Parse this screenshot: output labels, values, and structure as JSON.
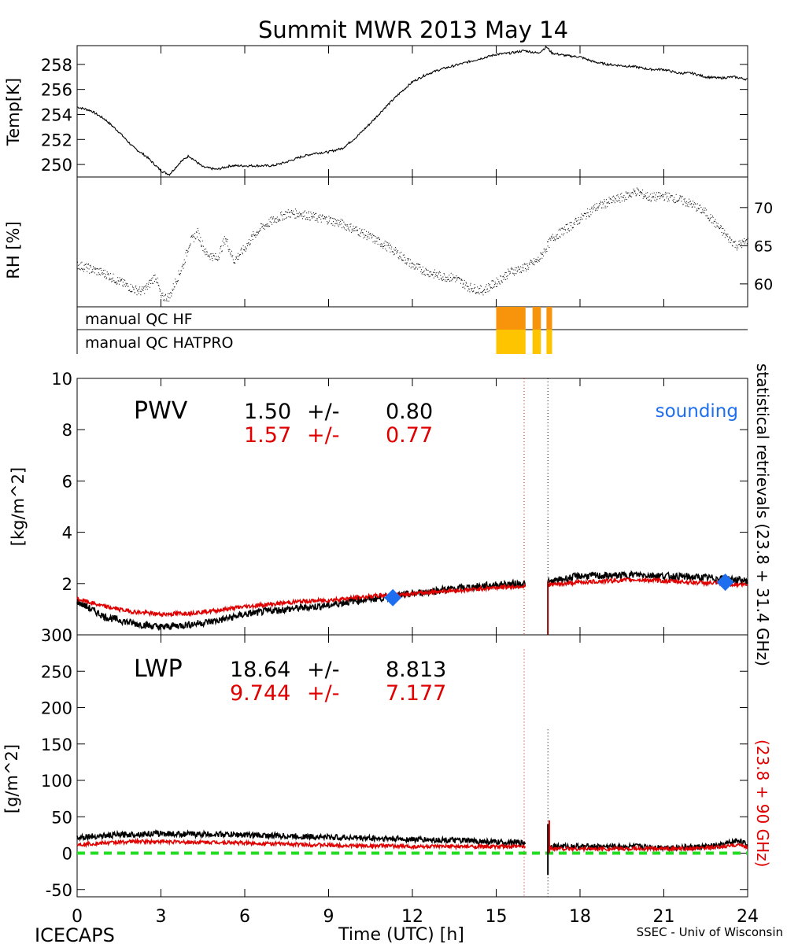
{
  "figure": {
    "title": "Summit MWR 2013 May 14",
    "footer_left": "ICECAPS",
    "footer_right": "SSEC - Univ of Wisconsin",
    "xlabel": "Time (UTC) [h]",
    "xticks": [
      "0",
      "3",
      "6",
      "9",
      "12",
      "15",
      "18",
      "21",
      "24"
    ],
    "colors": {
      "black": "#000000",
      "red": "#e00000",
      "blue": "#1e6ff0",
      "green": "#22dd22",
      "orange": "#f7940b",
      "yellow": "#ffc400"
    }
  },
  "chart_data": [
    {
      "id": "temp",
      "type": "line",
      "ylabel": "Temp[K]",
      "ylim": [
        249,
        259.5
      ],
      "xlim": [
        0,
        24
      ],
      "yticks": [
        "250",
        "252",
        "254",
        "256",
        "258"
      ],
      "series": [
        {
          "name": "temperature",
          "x": [
            0,
            0.5,
            1,
            1.5,
            2,
            2.5,
            3,
            3.3,
            3.7,
            4,
            4.5,
            5,
            5.5,
            6,
            6.5,
            7,
            7.5,
            8,
            8.5,
            9,
            9.5,
            10,
            10.5,
            11,
            11.5,
            12,
            12.5,
            13,
            13.5,
            14,
            14.5,
            15,
            15.5,
            16,
            16.5,
            16.8,
            17,
            17.5,
            18,
            18.5,
            19,
            19.5,
            20,
            20.5,
            21,
            21.5,
            22,
            22.5,
            23,
            23.5,
            24
          ],
          "values": [
            254.6,
            254.3,
            253.6,
            252.6,
            251.4,
            250.6,
            249.5,
            249.2,
            250.2,
            250.7,
            249.8,
            249.6,
            249.9,
            249.9,
            249.9,
            249.9,
            250.2,
            250.6,
            250.9,
            251.0,
            251.3,
            252.2,
            253.3,
            254.5,
            255.6,
            256.6,
            257.2,
            257.6,
            257.9,
            258.2,
            258.5,
            258.8,
            258.9,
            259.1,
            258.9,
            259.4,
            258.9,
            258.7,
            258.6,
            258.2,
            258.0,
            257.9,
            257.8,
            257.6,
            257.6,
            257.3,
            257.3,
            257.0,
            256.9,
            257.0,
            256.8
          ]
        }
      ]
    },
    {
      "id": "rh",
      "type": "scatter",
      "ylabel": "RH [%]",
      "ylim": [
        57,
        74
      ],
      "xlim": [
        0,
        24
      ],
      "yticks": [
        "60",
        "65",
        "70"
      ],
      "series": [
        {
          "name": "relative humidity",
          "x": [
            0,
            0.5,
            1,
            1.5,
            2,
            2.3,
            2.5,
            2.8,
            3,
            3.3,
            3.5,
            3.8,
            4,
            4.3,
            4.6,
            5,
            5.3,
            5.6,
            6,
            6.3,
            6.6,
            7,
            7.5,
            8,
            8.5,
            9,
            9.5,
            10,
            10.5,
            11,
            11.5,
            12,
            12.5,
            13,
            13.5,
            14,
            14.5,
            15,
            15.5,
            16,
            16.5,
            17,
            17.5,
            18,
            18.5,
            19,
            19.5,
            20,
            20.5,
            21,
            21.5,
            22,
            22.5,
            23,
            23.3,
            23.6,
            24
          ],
          "values": [
            62.5,
            61.9,
            61.3,
            60.3,
            59.3,
            59.0,
            59.6,
            61.1,
            58.2,
            58.3,
            60.2,
            62.6,
            65.3,
            66.7,
            64.0,
            63.3,
            66.0,
            63.0,
            64.7,
            66.3,
            67.4,
            68.3,
            69.2,
            69.2,
            68.7,
            68.4,
            67.8,
            67.0,
            66.1,
            65.1,
            63.9,
            62.4,
            61.6,
            61.0,
            60.8,
            59.6,
            59.1,
            60.2,
            61.6,
            62.1,
            63.1,
            66.0,
            67.2,
            68.5,
            69.9,
            70.7,
            71.3,
            72.1,
            71.3,
            71.5,
            71.1,
            70.4,
            69.3,
            67.2,
            66.0,
            65.0,
            65.6
          ]
        }
      ]
    },
    {
      "id": "qc",
      "type": "bar",
      "rows": [
        "manual QC HF",
        "manual QC HATPRO"
      ],
      "segments": [
        {
          "start": 15.0,
          "end": 16.05
        },
        {
          "start": 16.3,
          "end": 16.6
        },
        {
          "start": 16.8,
          "end": 17.0
        }
      ]
    },
    {
      "id": "pwv",
      "type": "line",
      "ylabel": "[kg/m^2]",
      "ylim": [
        0,
        10
      ],
      "xlim": [
        0,
        24
      ],
      "yticks": [
        "0",
        "2",
        "4",
        "6",
        "8",
        "10"
      ],
      "label": "PWV",
      "stats": [
        {
          "mean": "1.50",
          "sep": "+/-",
          "sd": "0.80"
        },
        {
          "mean": "1.57",
          "sep": "+/-",
          "sd": "0.77"
        }
      ],
      "sounding_label": "sounding",
      "sounding_points": [
        {
          "x": 11.3,
          "y": 1.45
        },
        {
          "x": 23.2,
          "y": 2.05
        }
      ],
      "series": [
        {
          "name": "statistical retrievals (23.8 + 31.4 GHz)",
          "x": [
            0,
            1,
            2,
            3,
            4,
            5,
            6,
            7,
            8,
            9,
            10,
            11,
            12,
            13,
            14,
            15,
            16,
            16.9,
            17.5,
            18,
            19,
            20,
            21,
            22,
            23,
            24
          ],
          "values": [
            1.3,
            0.7,
            0.45,
            0.3,
            0.4,
            0.55,
            0.8,
            0.95,
            1.05,
            1.15,
            1.35,
            1.45,
            1.6,
            1.75,
            1.85,
            1.95,
            2.0,
            2.05,
            2.2,
            2.3,
            2.3,
            2.35,
            2.3,
            2.25,
            2.2,
            2.1
          ]
        },
        {
          "name": "statistical retrievals (23.8 + 90 GHz)",
          "x": [
            0,
            1,
            2,
            3,
            4,
            5,
            6,
            7,
            8,
            9,
            10,
            11,
            12,
            13,
            14,
            15,
            16,
            16.9,
            17.5,
            18,
            19,
            20,
            21,
            22,
            23,
            24
          ],
          "values": [
            1.4,
            1.1,
            0.9,
            0.8,
            0.85,
            0.95,
            1.1,
            1.2,
            1.3,
            1.35,
            1.45,
            1.55,
            1.6,
            1.7,
            1.75,
            1.85,
            1.9,
            1.95,
            2.0,
            2.05,
            2.1,
            2.15,
            2.1,
            2.05,
            2.0,
            1.95
          ]
        }
      ]
    },
    {
      "id": "lwp",
      "type": "line",
      "ylabel": "[g/m^2]",
      "ylim": [
        -60,
        300
      ],
      "xlim": [
        0,
        24
      ],
      "yticks": [
        "-50",
        "0",
        "50",
        "100",
        "150",
        "200",
        "250",
        "300"
      ],
      "label": "LWP",
      "stats": [
        {
          "mean": "18.64",
          "sep": "+/-",
          "sd": "8.813"
        },
        {
          "mean": "9.744",
          "sep": "+/-",
          "sd": "7.177"
        }
      ],
      "zero_line": 0,
      "series": [
        {
          "name": "statistical retrievals (23.8 + 31.4 GHz)",
          "x": [
            0,
            1,
            2,
            3,
            4,
            5,
            6,
            7,
            8,
            9,
            10,
            11,
            12,
            13,
            14,
            15,
            16,
            16.9,
            17.5,
            18,
            19,
            20,
            21,
            22,
            23,
            23.7,
            24
          ],
          "values": [
            22,
            24,
            26,
            27,
            26,
            26,
            25,
            24,
            23,
            22,
            21,
            20,
            19,
            18,
            17,
            15,
            14,
            10,
            9,
            9,
            9,
            9,
            8,
            8,
            10,
            18,
            10
          ]
        },
        {
          "name": "statistical retrievals (23.8 + 90 GHz)",
          "x": [
            0,
            1,
            2,
            3,
            4,
            5,
            6,
            7,
            8,
            9,
            10,
            11,
            12,
            13,
            14,
            15,
            16,
            16.9,
            17.5,
            18,
            19,
            20,
            21,
            22,
            23,
            23.7,
            24
          ],
          "values": [
            12,
            14,
            16,
            16,
            15,
            15,
            14,
            13,
            12,
            11,
            10,
            10,
            9,
            9,
            9,
            9,
            9,
            7,
            6,
            6,
            6,
            6,
            6,
            6,
            8,
            12,
            8
          ]
        }
      ]
    }
  ],
  "right_labels": {
    "black_text": "statistical retrievals (23.8 + 31.4 GHz)",
    "red_text": "(23.8 + 90 GHz)"
  }
}
